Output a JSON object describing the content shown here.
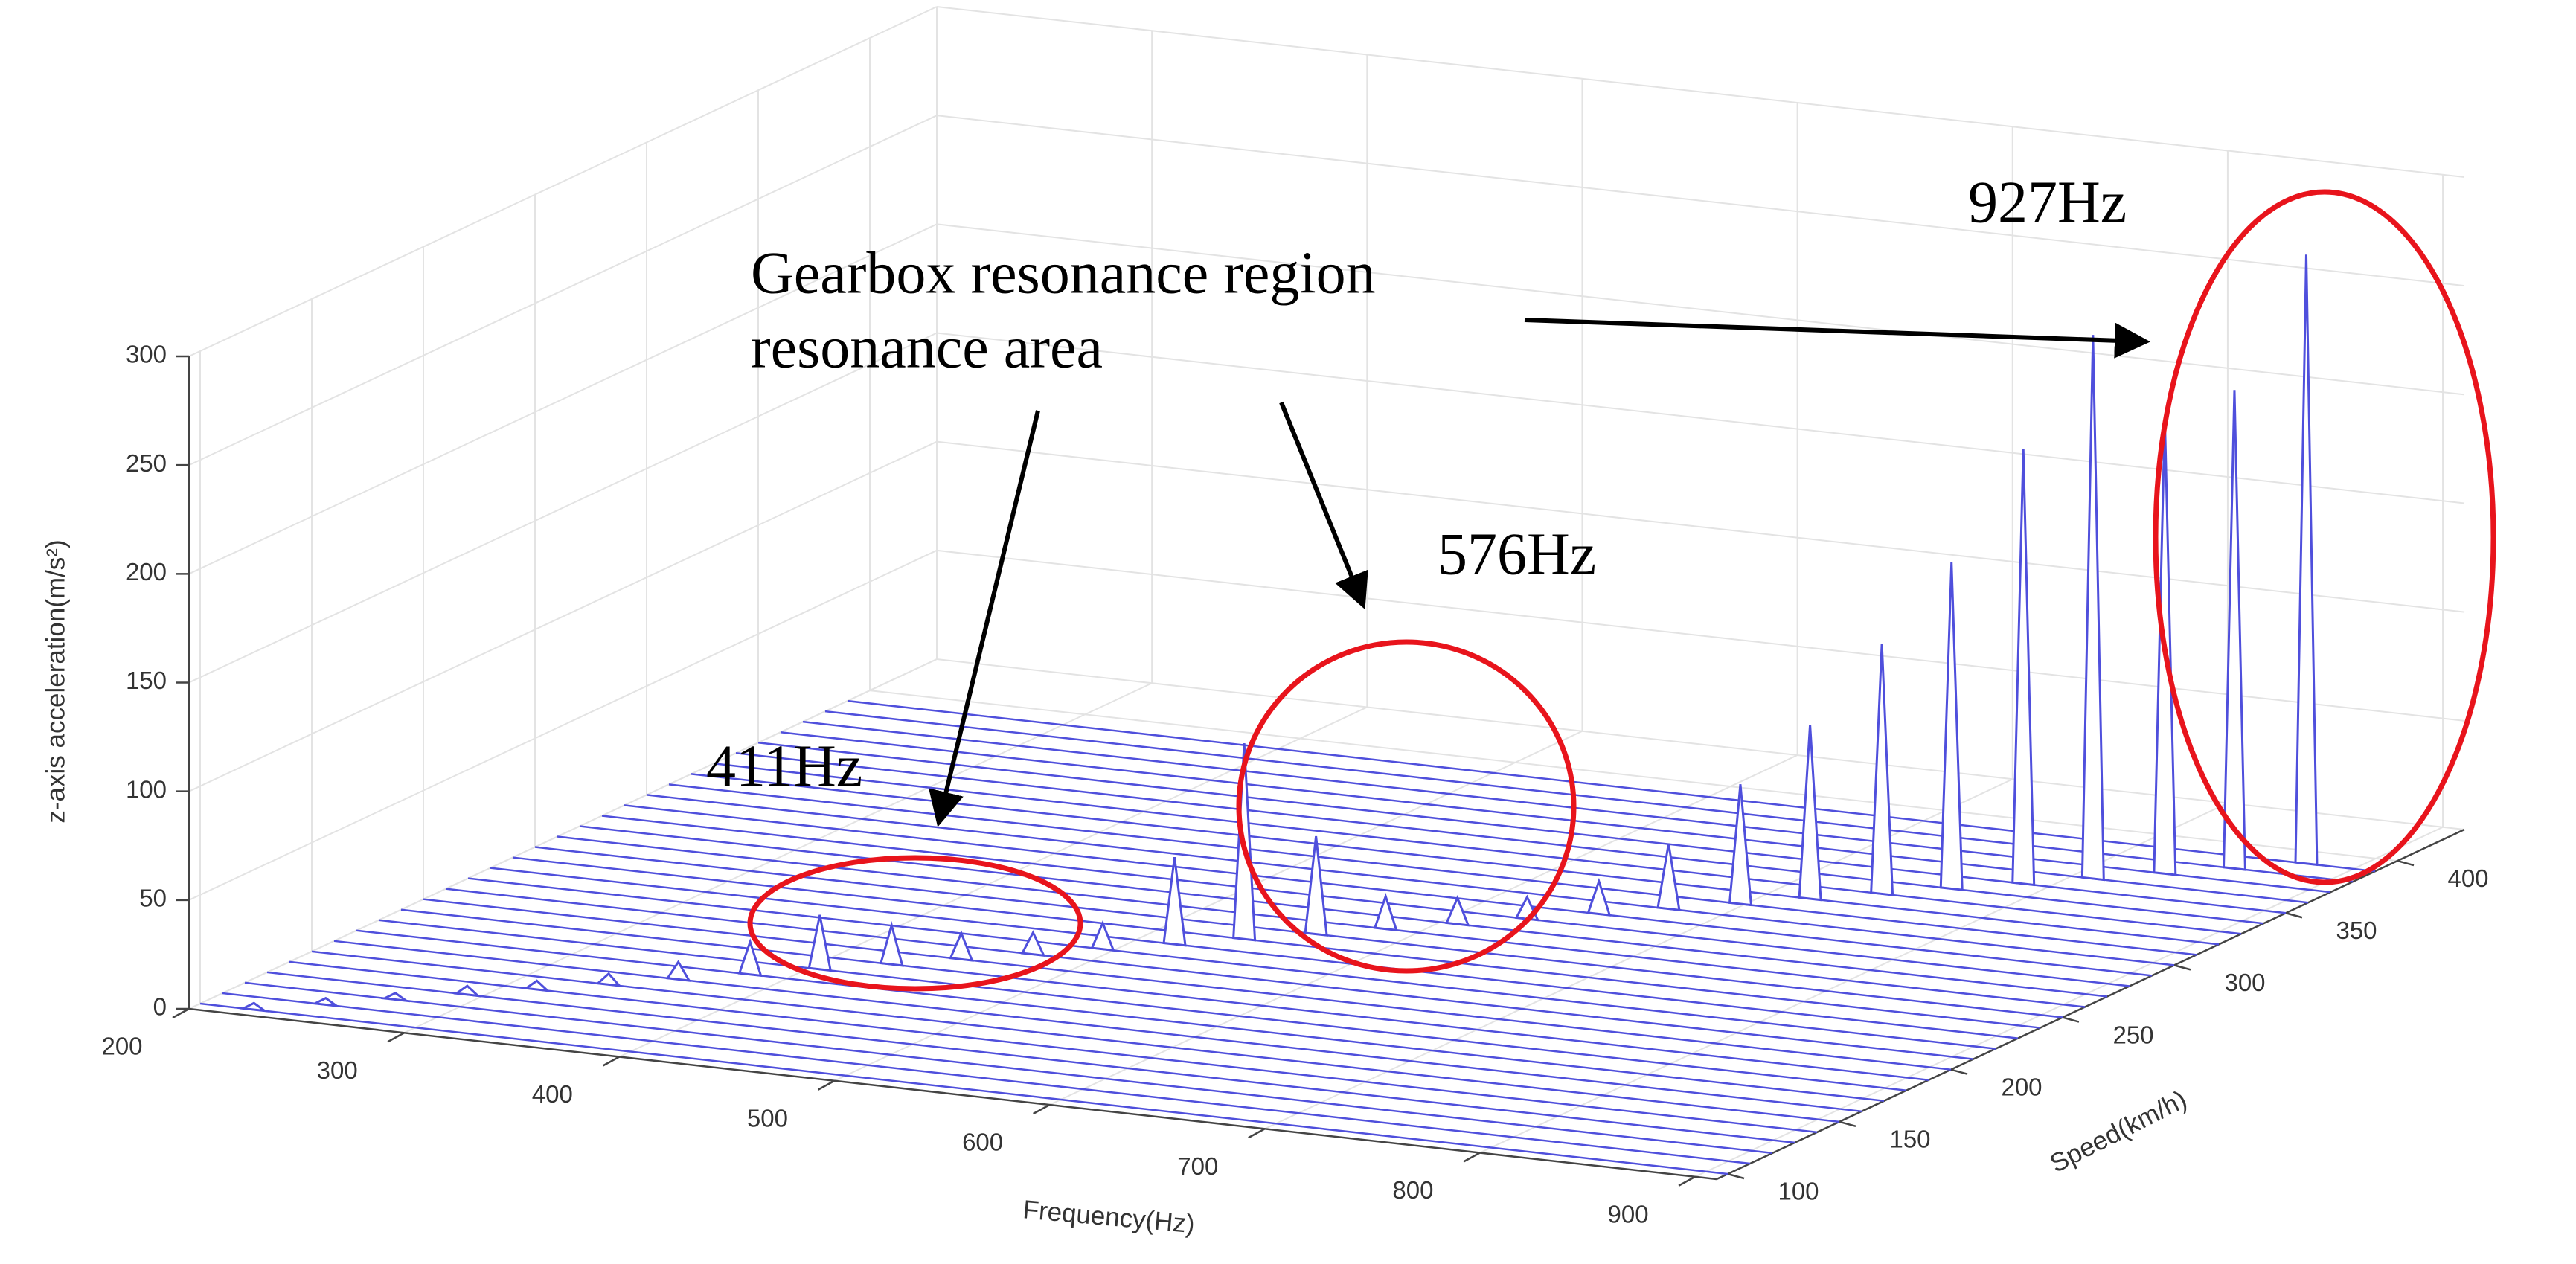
{
  "chart_data": {
    "type": "waterfall",
    "xlabel": "Frequency(Hz)",
    "ylabel": "Speed(km/h)",
    "zlabel": "z-axis acceleration(m/s²)",
    "xlim": [
      200,
      910
    ],
    "xticks": [
      200,
      300,
      400,
      500,
      600,
      700,
      800,
      900
    ],
    "ylim": [
      95,
      430
    ],
    "yticks": [
      100,
      150,
      200,
      250,
      300,
      350,
      400
    ],
    "zlim": [
      0,
      300
    ],
    "zticks": [
      0,
      50,
      100,
      150,
      200,
      250,
      300
    ],
    "grid": true,
    "color": "#4f4fdc",
    "speeds": [
      100,
      110,
      120,
      130,
      140,
      150,
      160,
      170,
      180,
      190,
      200,
      210,
      220,
      230,
      240,
      250,
      260,
      270,
      280,
      290,
      300,
      310,
      320,
      330,
      340,
      350,
      360,
      370,
      380,
      390
    ],
    "peak_frequency": [
      225,
      248,
      270,
      293,
      315,
      338,
      360,
      383,
      405,
      428,
      450,
      473,
      495,
      518,
      540,
      563,
      585,
      608,
      630,
      653,
      675,
      698,
      720,
      743,
      765,
      788,
      810,
      833,
      855,
      878
    ],
    "values": [
      3,
      3,
      3,
      4,
      4,
      5,
      8,
      15,
      25,
      18,
      12,
      10,
      12,
      40,
      90,
      45,
      15,
      12,
      10,
      15,
      30,
      55,
      80,
      115,
      150,
      200,
      250,
      210,
      220,
      280
    ],
    "annotations": {
      "region_label": [
        "Gearbox resonance region",
        "resonance area"
      ],
      "peaks": [
        "411Hz",
        "576Hz",
        "927Hz"
      ]
    }
  }
}
